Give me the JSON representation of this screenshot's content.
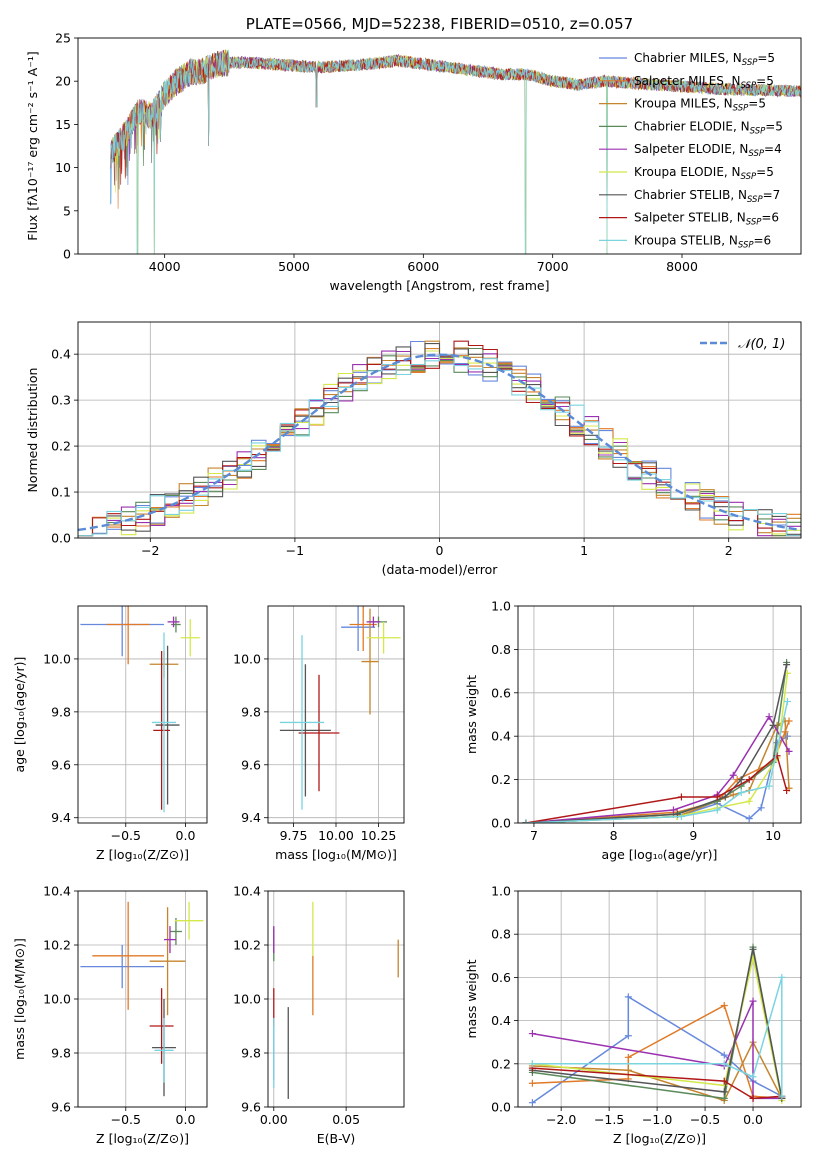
{
  "chart_data": [
    {
      "id": "spectrum",
      "type": "line",
      "title": "PLATE=0566, MJD=52238, FIBERID=0510, z=0.057",
      "xlabel": "wavelength [Angstrom, rest frame]",
      "ylabel": "Flux [fλ10⁻¹⁷ erg cm⁻² s⁻¹ A⁻¹]",
      "xlim": [
        3330,
        8920
      ],
      "ylim": [
        0,
        25
      ],
      "xticks": [
        "4000",
        "5000",
        "6000",
        "7000",
        "8000"
      ],
      "yticks": [
        "0",
        "5",
        "10",
        "15",
        "20",
        "25"
      ],
      "grid": false,
      "legend_position": "top-right",
      "continuum": [
        [
          3580,
          11.5
        ],
        [
          3700,
          14.0
        ],
        [
          3800,
          16.5
        ],
        [
          3900,
          16.0
        ],
        [
          4000,
          18.5
        ],
        [
          4100,
          20.0
        ],
        [
          4200,
          21.0
        ],
        [
          4300,
          21.2
        ],
        [
          4400,
          22.0
        ],
        [
          4600,
          22.2
        ],
        [
          4800,
          22.0
        ],
        [
          5000,
          21.8
        ],
        [
          5200,
          21.6
        ],
        [
          5400,
          21.8
        ],
        [
          5600,
          22.0
        ],
        [
          5800,
          22.4
        ],
        [
          6000,
          22.0
        ],
        [
          6200,
          21.6
        ],
        [
          6400,
          21.2
        ],
        [
          6600,
          20.8
        ],
        [
          6800,
          20.8
        ],
        [
          7000,
          20.0
        ],
        [
          7200,
          19.6
        ],
        [
          7400,
          20.0
        ],
        [
          7600,
          19.8
        ],
        [
          7800,
          19.6
        ],
        [
          8000,
          19.4
        ],
        [
          8200,
          19.2
        ],
        [
          8400,
          19.0
        ],
        [
          8600,
          19.0
        ],
        [
          8920,
          18.8
        ]
      ],
      "absorption_features": [
        {
          "x": 3790,
          "y": 0.0
        },
        {
          "x": 3920,
          "y": 0.0
        },
        {
          "x": 3968,
          "y": 13.0
        },
        {
          "x": 4340,
          "y": 12.5
        },
        {
          "x": 5175,
          "y": 17.0
        },
        {
          "x": 6790,
          "y": 0.0
        },
        {
          "x": 7420,
          "y": 0.0
        }
      ],
      "legend": [
        "Chabrier MILES, N_SSP=5",
        "Salpeter MILES, N_SSP=5",
        "Kroupa MILES, N_SSP=5",
        "Chabrier ELODIE, N_SSP=5",
        "Salpeter ELODIE, N_SSP=4",
        "Kroupa ELODIE, N_SSP=5",
        "Chabrier STELIB, N_SSP=7",
        "Salpeter STELIB, N_SSP=6",
        "Kroupa STELIB, N_SSP=6"
      ]
    },
    {
      "id": "residuals",
      "type": "bar",
      "xlabel": "(data-model)/error",
      "ylabel": "Normed distribution",
      "xlim": [
        -2.5,
        2.5
      ],
      "ylim": [
        0,
        0.47
      ],
      "xticks": [
        "−2",
        "−1",
        "0",
        "1",
        "2"
      ],
      "yticks": [
        "0.0",
        "0.1",
        "0.2",
        "0.3",
        "0.4"
      ],
      "grid": true,
      "legend": "𝒩(0, 1)",
      "legend_position": "top-right",
      "bin_width": 0.1,
      "series_count": 9
    },
    {
      "id": "age_vs_Z",
      "type": "scatter",
      "xlabel": "Z [log₁₀(Z/Z⊙)]",
      "ylabel": "age  [log₁₀(age/yr)]",
      "xlim": [
        -0.9,
        0.18
      ],
      "ylim": [
        9.38,
        10.2
      ],
      "xticks": [
        "−0.5",
        "0.0"
      ],
      "yticks": [
        "9.4",
        "9.6",
        "9.8",
        "10.0"
      ],
      "grid": true,
      "points": [
        {
          "x": -0.53,
          "y": 10.13,
          "xerr": 0.35,
          "yerr": 0.12
        },
        {
          "x": -0.48,
          "y": 10.13,
          "xerr": 0.18,
          "yerr": 0.15
        },
        {
          "x": -0.18,
          "y": 9.98,
          "xerr": 0.12,
          "yerr": 0.05
        },
        {
          "x": -0.08,
          "y": 10.13,
          "xerr": 0.04,
          "yerr": 0.03
        },
        {
          "x": -0.1,
          "y": 10.14,
          "xerr": 0.05,
          "yerr": 0.02
        },
        {
          "x": 0.04,
          "y": 10.08,
          "xerr": 0.08,
          "yerr": 0.07
        },
        {
          "x": -0.15,
          "y": 9.75,
          "xerr": 0.1,
          "yerr": 0.3
        },
        {
          "x": -0.2,
          "y": 9.73,
          "xerr": 0.07,
          "yerr": 0.3
        },
        {
          "x": -0.18,
          "y": 9.76,
          "xerr": 0.1,
          "yerr": 0.34
        }
      ]
    },
    {
      "id": "age_vs_mass",
      "type": "scatter",
      "xlabel": "mass [log₁₀(M/M⊙)]",
      "ylabel": "",
      "xlim": [
        9.6,
        10.4
      ],
      "ylim": [
        9.38,
        10.2
      ],
      "xticks": [
        "9.75",
        "10.00",
        "10.25"
      ],
      "yticks": [
        "9.4",
        "9.6",
        "9.8",
        "10.0"
      ],
      "grid": true,
      "points": [
        {
          "x": 10.13,
          "y": 10.12,
          "xerr": 0.1,
          "yerr": 0.09
        },
        {
          "x": 10.16,
          "y": 10.13,
          "xerr": 0.08,
          "yerr": 0.1
        },
        {
          "x": 10.2,
          "y": 9.99,
          "xerr": 0.05,
          "yerr": 0.2
        },
        {
          "x": 10.25,
          "y": 10.14,
          "xerr": 0.05,
          "yerr": 0.02
        },
        {
          "x": 10.22,
          "y": 10.14,
          "xerr": 0.04,
          "yerr": 0.02
        },
        {
          "x": 10.28,
          "y": 10.08,
          "xerr": 0.1,
          "yerr": 0.06
        },
        {
          "x": 9.82,
          "y": 9.73,
          "xerr": 0.15,
          "yerr": 0.25
        },
        {
          "x": 9.9,
          "y": 9.72,
          "xerr": 0.12,
          "yerr": 0.22
        },
        {
          "x": 9.8,
          "y": 9.76,
          "xerr": 0.13,
          "yerr": 0.33
        }
      ]
    },
    {
      "id": "mass_weight_vs_age",
      "type": "line",
      "xlabel": "age  [log₁₀(age/yr)]",
      "ylabel": "mass weight",
      "xlim": [
        6.8,
        10.35
      ],
      "ylim": [
        0,
        1.0
      ],
      "xticks": [
        "7",
        "8",
        "9",
        "10"
      ],
      "yticks": [
        "0.0",
        "0.2",
        "0.4",
        "0.6",
        "0.8",
        "1.0"
      ],
      "grid": true,
      "series": [
        {
          "values": [
            [
              6.9,
              0.0
            ],
            [
              8.8,
              0.03
            ],
            [
              9.3,
              0.09
            ],
            [
              9.7,
              0.02
            ],
            [
              9.85,
              0.07
            ],
            [
              10.05,
              0.37
            ],
            [
              10.18,
              0.4
            ]
          ]
        },
        {
          "values": [
            [
              6.9,
              0.0
            ],
            [
              8.8,
              0.05
            ],
            [
              9.3,
              0.1
            ],
            [
              9.55,
              0.2
            ],
            [
              10.0,
              0.28
            ],
            [
              10.15,
              0.42
            ],
            [
              10.2,
              0.47
            ]
          ]
        },
        {
          "values": [
            [
              6.9,
              0.0
            ],
            [
              8.8,
              0.03
            ],
            [
              9.5,
              0.13
            ],
            [
              9.7,
              0.15
            ],
            [
              10.05,
              0.45
            ],
            [
              10.15,
              0.47
            ],
            [
              10.2,
              0.16
            ]
          ]
        },
        {
          "values": [
            [
              6.9,
              0.0
            ],
            [
              8.75,
              0.04
            ],
            [
              9.3,
              0.1
            ],
            [
              9.6,
              0.17
            ],
            [
              10.0,
              0.28
            ],
            [
              10.17,
              0.74
            ]
          ]
        },
        {
          "values": [
            [
              6.9,
              0.0
            ],
            [
              8.75,
              0.06
            ],
            [
              9.3,
              0.13
            ],
            [
              9.5,
              0.22
            ],
            [
              9.95,
              0.49
            ],
            [
              10.2,
              0.33
            ]
          ]
        },
        {
          "values": [
            [
              6.9,
              0.0
            ],
            [
              8.8,
              0.03
            ],
            [
              9.3,
              0.07
            ],
            [
              9.7,
              0.1
            ],
            [
              10.05,
              0.3
            ],
            [
              10.18,
              0.69
            ]
          ]
        },
        {
          "values": [
            [
              6.9,
              0.0
            ],
            [
              8.8,
              0.04
            ],
            [
              9.4,
              0.12
            ],
            [
              9.6,
              0.2
            ],
            [
              10.0,
              0.45
            ],
            [
              10.17,
              0.73
            ]
          ]
        },
        {
          "values": [
            [
              6.9,
              0.0
            ],
            [
              8.85,
              0.12
            ],
            [
              9.3,
              0.12
            ],
            [
              9.7,
              0.2
            ],
            [
              10.05,
              0.31
            ],
            [
              10.17,
              0.15
            ]
          ]
        },
        {
          "values": [
            [
              6.9,
              0.0
            ],
            [
              8.85,
              0.03
            ],
            [
              9.3,
              0.06
            ],
            [
              9.6,
              0.14
            ],
            [
              9.95,
              0.17
            ],
            [
              10.18,
              0.56
            ]
          ]
        }
      ]
    },
    {
      "id": "mass_vs_Z",
      "type": "scatter",
      "xlabel": "Z [log₁₀(Z/Z⊙)]",
      "ylabel": "mass [log₁₀(M/M⊙)]",
      "xlim": [
        -0.9,
        0.18
      ],
      "ylim": [
        9.6,
        10.4
      ],
      "xticks": [
        "−0.5",
        "0.0"
      ],
      "yticks": [
        "9.6",
        "9.8",
        "10.0",
        "10.2",
        "10.4"
      ],
      "grid": true,
      "points": [
        {
          "x": -0.53,
          "y": 10.12,
          "xerr": 0.35,
          "yerr": 0.08
        },
        {
          "x": -0.48,
          "y": 10.16,
          "xerr": 0.3,
          "yerr": 0.2
        },
        {
          "x": -0.15,
          "y": 10.14,
          "xerr": 0.15,
          "yerr": 0.2
        },
        {
          "x": -0.08,
          "y": 10.25,
          "xerr": 0.05,
          "yerr": 0.05
        },
        {
          "x": -0.13,
          "y": 10.22,
          "xerr": 0.05,
          "yerr": 0.05
        },
        {
          "x": 0.03,
          "y": 10.29,
          "xerr": 0.12,
          "yerr": 0.07
        },
        {
          "x": -0.18,
          "y": 9.82,
          "xerr": 0.1,
          "yerr": 0.18
        },
        {
          "x": -0.2,
          "y": 9.9,
          "xerr": 0.1,
          "yerr": 0.14
        },
        {
          "x": -0.18,
          "y": 9.81,
          "xerr": 0.08,
          "yerr": 0.12
        }
      ]
    },
    {
      "id": "mass_vs_ebv",
      "type": "scatter",
      "xlabel": "E(B-V)",
      "ylabel": "",
      "xlim": [
        -0.004,
        0.09
      ],
      "ylim": [
        9.6,
        10.4
      ],
      "xticks": [
        "0.00",
        "0.05"
      ],
      "yticks": [
        "9.6",
        "9.8",
        "10.0",
        "10.2",
        "10.4"
      ],
      "grid": true,
      "points": [
        {
          "x": 0.0,
          "y": 9.8,
          "yerr": 0.1
        },
        {
          "x": 0.027,
          "y": 10.05,
          "yerr": 0.11
        },
        {
          "x": 0.086,
          "y": 10.15,
          "yerr": 0.07
        },
        {
          "x": 0.0,
          "y": 10.2,
          "yerr": 0.06
        },
        {
          "x": 0.0,
          "y": 10.22,
          "yerr": 0.05
        },
        {
          "x": 0.027,
          "y": 10.26,
          "yerr": 0.1
        },
        {
          "x": 0.01,
          "y": 9.8,
          "yerr": 0.17
        },
        {
          "x": 0.0,
          "y": 9.97,
          "yerr": 0.07
        },
        {
          "x": 0.0,
          "y": 9.8,
          "yerr": 0.13
        }
      ]
    },
    {
      "id": "mass_weight_vs_Z",
      "type": "line",
      "xlabel": "Z [log₁₀(Z/Z⊙)]",
      "ylabel": "mass weight",
      "xlim": [
        -2.45,
        0.5
      ],
      "ylim": [
        0,
        1.0
      ],
      "xticks": [
        "−2.0",
        "−1.5",
        "−1.0",
        "−0.5",
        "0.0"
      ],
      "yticks": [
        "0.0",
        "0.2",
        "0.4",
        "0.6",
        "0.8",
        "1.0"
      ],
      "grid": true,
      "series": [
        {
          "values": [
            [
              -2.3,
              0.02
            ],
            [
              -1.3,
              0.33
            ],
            [
              -1.3,
              0.51
            ],
            [
              -0.3,
              0.24
            ],
            [
              0.0,
              0.12
            ],
            [
              0.3,
              0.05
            ]
          ]
        },
        {
          "values": [
            [
              -2.3,
              0.11
            ],
            [
              -1.3,
              0.13
            ],
            [
              -1.3,
              0.23
            ],
            [
              -0.3,
              0.47
            ],
            [
              0.0,
              0.05
            ],
            [
              0.3,
              0.04
            ]
          ]
        },
        {
          "values": [
            [
              -2.3,
              0.19
            ],
            [
              -1.3,
              0.17
            ],
            [
              -0.3,
              0.03
            ],
            [
              0.0,
              0.3
            ],
            [
              0.3,
              0.04
            ]
          ]
        },
        {
          "values": [
            [
              -2.3,
              0.16
            ],
            [
              -0.3,
              0.04
            ],
            [
              0.0,
              0.74
            ],
            [
              0.3,
              0.04
            ]
          ]
        },
        {
          "values": [
            [
              -2.3,
              0.34
            ],
            [
              -0.3,
              0.19
            ],
            [
              0.0,
              0.49
            ],
            [
              0.0,
              0.04
            ],
            [
              0.3,
              0.04
            ]
          ]
        },
        {
          "values": [
            [
              -2.3,
              0.2
            ],
            [
              -0.3,
              0.1
            ],
            [
              0.0,
              0.69
            ],
            [
              0.3,
              0.03
            ]
          ]
        },
        {
          "values": [
            [
              -2.3,
              0.17
            ],
            [
              -0.3,
              0.07
            ],
            [
              0.0,
              0.73
            ],
            [
              0.3,
              0.04
            ]
          ]
        },
        {
          "values": [
            [
              -2.3,
              0.18
            ],
            [
              -0.3,
              0.12
            ],
            [
              0.0,
              0.04
            ],
            [
              0.3,
              0.05
            ]
          ]
        },
        {
          "values": [
            [
              -2.3,
              0.2
            ],
            [
              -0.3,
              0.2
            ],
            [
              0.0,
              0.14
            ],
            [
              0.3,
              0.6
            ],
            [
              0.3,
              0.05
            ]
          ]
        }
      ]
    }
  ],
  "series_colors": [
    "#6688dd",
    "#e07a28",
    "#c4852e",
    "#5a8a5a",
    "#9b30b0",
    "#d4e84a",
    "#555555",
    "#b01818",
    "#7ad4e0"
  ],
  "pdf_color": "#5b8ad6"
}
